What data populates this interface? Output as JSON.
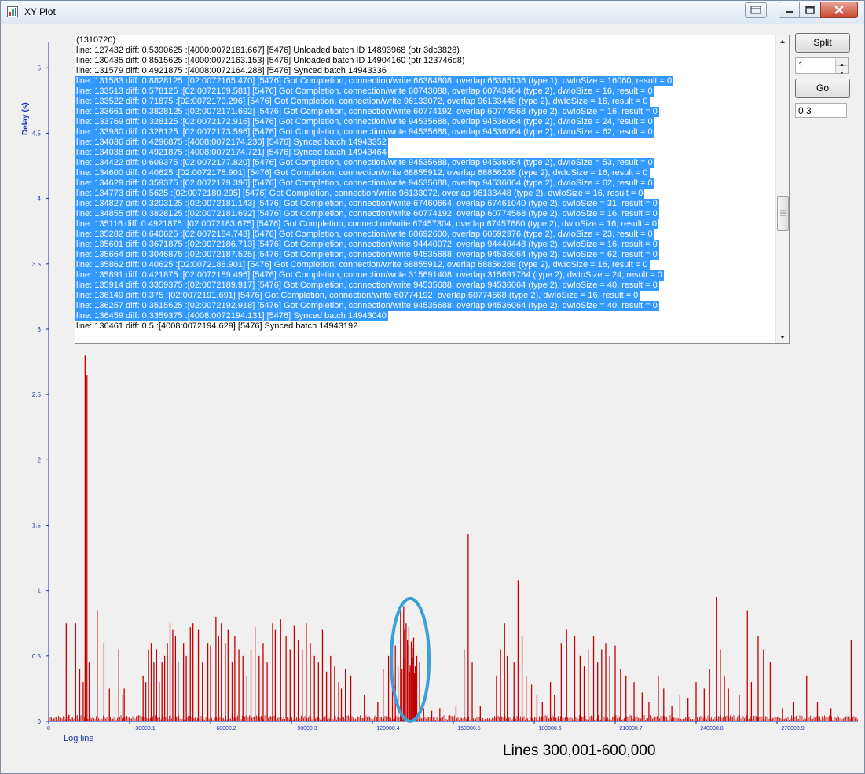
{
  "window": {
    "title": "XY Plot",
    "icon": "chart-app-icon"
  },
  "controls": {
    "split_label": "Split",
    "spin_value": "1",
    "go_label": "Go",
    "threshold_value": "0.3"
  },
  "log": {
    "lines": [
      {
        "text": "(1310720)",
        "selected": false
      },
      {
        "text": "line: 127432 diff: 0.5390625  :[4000:0072161.667] [5476] Unloaded batch ID 14893968 (ptr 3dc3828)",
        "selected": false
      },
      {
        "text": "line: 130435 diff: 0.8515625  :[4000:0072163.153] [5476] Unloaded batch ID 14904160 (ptr 123746d8)",
        "selected": false
      },
      {
        "text": "line: 131579 diff: 0.4921875  :[4008:0072164.288] [5476] Synced batch 14943336",
        "selected": false
      },
      {
        "text": "line: 131583 diff: 0.8828125  :[02:0072165.470] [5476] Got Completion, connection/write 66384808, overlap 66385136 (type 1), dwIoSize = 16060, result = 0",
        "selected": true
      },
      {
        "text": "line: 133513 diff: 0.578125  :[02:0072169.581] [5476] Got Completion, connection/write 60743088, overlap 60743464 (type 2), dwIoSize = 16, result = 0",
        "selected": true
      },
      {
        "text": "line: 133522 diff: 0.71875  :[02:0072170.296] [5476] Got Completion, connection/write 96133072, overlap 96133448 (type 2), dwIoSize = 16, result = 0",
        "selected": true
      },
      {
        "text": "line: 133661 diff: 0.3828125  :[02:0072171.692] [5476] Got Completion, connection/write 60774192, overlap 60774568 (type 2), dwIoSize = 16, result = 0",
        "selected": true
      },
      {
        "text": "line: 133769 diff: 0.328125  :[02:0072172.916] [5476] Got Completion, connection/write 94535688, overlap 94536064 (type 2), dwIoSize = 24, result = 0",
        "selected": true
      },
      {
        "text": "line: 133930 diff: 0.328125  :[02:0072173.596] [5476] Got Completion, connection/write 94535688, overlap 94536064 (type 2), dwIoSize = 62, result = 0",
        "selected": true
      },
      {
        "text": "line: 134036 diff: 0.4296875  :[4008:0072174.230] [5476] Synced batch 14943352",
        "selected": true
      },
      {
        "text": "line: 134038 diff: 0.4921875  :[4008:0072174.721] [5476] Synced batch 14943464",
        "selected": true
      },
      {
        "text": "line: 134422 diff: 0.609375  :[02:0072177.820] [5476] Got Completion, connection/write 94535688, overlap 94536064 (type 2), dwIoSize = 53, result = 0",
        "selected": true
      },
      {
        "text": "line: 134600 diff: 0.40625  :[02:0072178.901] [5476] Got Completion, connection/write 68855912, overlap 68856288 (type 2), dwIoSize = 16, result = 0",
        "selected": true
      },
      {
        "text": "line: 134629 diff: 0.359375  :[02:0072179.396] [5476] Got Completion, connection/write 94535688, overlap 94536064 (type 2), dwIoSize = 62, result = 0",
        "selected": true
      },
      {
        "text": "line: 134773 diff: 0.5625  :[02:0072180.295] [5476] Got Completion, connection/write 96133072, overlap 96133448 (type 2), dwIoSize = 16, result = 0",
        "selected": true
      },
      {
        "text": "line: 134827 diff: 0.3203125  :[02:0072181.143] [5476] Got Completion, connection/write 67460664, overlap 67461040 (type 2), dwIoSize = 31, result = 0",
        "selected": true
      },
      {
        "text": "line: 134855 diff: 0.3828125  :[02:0072181.692] [5476] Got Completion, connection/write 60774192, overlap 60774568 (type 2), dwIoSize = 16, result = 0",
        "selected": true
      },
      {
        "text": "line: 135116 diff: 0.4921875  :[02:0072183.675] [5476] Got Completion, connection/write 67457304, overlap 67457680 (type 2), dwIoSize = 16, result = 0",
        "selected": true
      },
      {
        "text": "line: 135282 diff: 0.640625  :[02:0072184.743] [5476] Got Completion, connection/write 60692600, overlap 60692976 (type 2), dwIoSize = 23, result = 0",
        "selected": true
      },
      {
        "text": "line: 135601 diff: 0.3671875  :[02:0072186.713] [5476] Got Completion, connection/write 94440072, overlap 94440448 (type 2), dwIoSize = 16, result = 0",
        "selected": true
      },
      {
        "text": "line: 135664 diff: 0.3046875  :[02:0072187.525] [5476] Got Completion, connection/write 94535688, overlap 94536064 (type 2), dwIoSize = 62, result = 0",
        "selected": true
      },
      {
        "text": "line: 135862 diff: 0.40625  :[02:0072188.901] [5476] Got Completion, connection/write 68855912, overlap 68856288 (type 2), dwIoSize = 16, result = 0",
        "selected": true
      },
      {
        "text": "line: 135891 diff: 0.421875  :[02:0072189.496] [5476] Got Completion, connection/write 315691408, overlap 315691784 (type 2), dwIoSize = 24, result = 0",
        "selected": true
      },
      {
        "text": "line: 135914 diff: 0.3359375  :[02:0072189.917] [5476] Got Completion, connection/write 94535688, overlap 94536064 (type 2), dwIoSize = 40, result = 0",
        "selected": true
      },
      {
        "text": "line: 136149 diff: 0.375  :[02:0072191.691] [5476] Got Completion, connection/write 60774192, overlap 60774568 (type 2), dwIoSize = 16, result = 0",
        "selected": true
      },
      {
        "text": "line: 136257 diff: 0.3515625  :[02:0072192.918] [5476] Got Completion, connection/write 94535688, overlap 94536064 (type 2), dwIoSize = 40, result = 0",
        "selected": true
      },
      {
        "text": "line: 136459 diff: 0.3359375  :[4008:0072194.131] [5476] Synced batch 14943040",
        "selected": true
      },
      {
        "text": "line: 136461 diff: 0.5  :[4008:0072194.629] [5476] Synced batch 14943192",
        "selected": false
      }
    ]
  },
  "annotation": {
    "caption": "Lines 300,001-600,000"
  },
  "chart_data": {
    "type": "bar",
    "xlabel": "Log line",
    "ylabel": "Delay (s)",
    "xlim": [
      0,
      300000
    ],
    "ylim": [
      0,
      5.2
    ],
    "x_tick_labels": [
      "0",
      "30000.1",
      "60000.2",
      "90000.3",
      "120000.4",
      "150000.5",
      "180000.6",
      "210000.7",
      "240000.8",
      "270000.9"
    ],
    "x_tick_values": [
      0,
      30000.1,
      60000.2,
      90000.3,
      120000.4,
      150000.5,
      180000.6,
      210000.7,
      240000.8,
      270000.9
    ],
    "y_tick_labels": [
      "0",
      "0.5",
      "1",
      "1.5",
      "2",
      "2.5",
      "3",
      "3.5",
      "4",
      "4.5",
      "5"
    ],
    "y_tick_values": [
      0,
      0.5,
      1,
      1.5,
      2,
      2.5,
      3,
      3.5,
      4,
      4.5,
      5
    ],
    "bar_color": "#c00000",
    "axis_color": "#1a33b4",
    "highlight_color": "#3aa0d8",
    "highlight_center": [
      134000,
      0.47
    ],
    "spikes": [
      {
        "x": 6500,
        "y": 0.75
      },
      {
        "x": 7500,
        "y": 0.05
      },
      {
        "x": 10000,
        "y": 0.75
      },
      {
        "x": 11500,
        "y": 0.4
      },
      {
        "x": 12800,
        "y": 0.3
      },
      {
        "x": 13500,
        "y": 2.8
      },
      {
        "x": 14200,
        "y": 2.65
      },
      {
        "x": 15000,
        "y": 0.45
      },
      {
        "x": 18000,
        "y": 0.85
      },
      {
        "x": 20500,
        "y": 0.6
      },
      {
        "x": 22500,
        "y": 0.25
      },
      {
        "x": 26000,
        "y": 0.55
      },
      {
        "x": 27500,
        "y": 0.2
      },
      {
        "x": 28000,
        "y": 0.25
      },
      {
        "x": 35000,
        "y": 0.35
      },
      {
        "x": 36000,
        "y": 0.3
      },
      {
        "x": 37000,
        "y": 0.55
      },
      {
        "x": 38000,
        "y": 0.6
      },
      {
        "x": 39000,
        "y": 0.45
      },
      {
        "x": 40000,
        "y": 0.55
      },
      {
        "x": 41000,
        "y": 0.3
      },
      {
        "x": 42000,
        "y": 0.45
      },
      {
        "x": 43000,
        "y": 0.5
      },
      {
        "x": 44000,
        "y": 0.6
      },
      {
        "x": 45000,
        "y": 0.75
      },
      {
        "x": 46000,
        "y": 0.7
      },
      {
        "x": 47000,
        "y": 0.65
      },
      {
        "x": 48000,
        "y": 0.45
      },
      {
        "x": 50000,
        "y": 0.6
      },
      {
        "x": 51000,
        "y": 0.5
      },
      {
        "x": 52500,
        "y": 0.72
      },
      {
        "x": 53500,
        "y": 0.75
      },
      {
        "x": 55500,
        "y": 0.7
      },
      {
        "x": 57000,
        "y": 0.45
      },
      {
        "x": 59000,
        "y": 0.6
      },
      {
        "x": 60000,
        "y": 0.58
      },
      {
        "x": 62000,
        "y": 0.8
      },
      {
        "x": 63000,
        "y": 0.65
      },
      {
        "x": 64000,
        "y": 0.75
      },
      {
        "x": 65500,
        "y": 0.6
      },
      {
        "x": 66500,
        "y": 0.7
      },
      {
        "x": 68000,
        "y": 0.45
      },
      {
        "x": 69000,
        "y": 0.65
      },
      {
        "x": 70500,
        "y": 0.55
      },
      {
        "x": 72000,
        "y": 0.5
      },
      {
        "x": 73500,
        "y": 0.35
      },
      {
        "x": 75000,
        "y": 0.55
      },
      {
        "x": 76500,
        "y": 0.72
      },
      {
        "x": 78000,
        "y": 0.5
      },
      {
        "x": 79500,
        "y": 0.6
      },
      {
        "x": 81000,
        "y": 0.45
      },
      {
        "x": 83000,
        "y": 0.75
      },
      {
        "x": 84000,
        "y": 0.7
      },
      {
        "x": 86000,
        "y": 0.78
      },
      {
        "x": 88000,
        "y": 0.65
      },
      {
        "x": 89500,
        "y": 0.55
      },
      {
        "x": 91000,
        "y": 0.73
      },
      {
        "x": 92500,
        "y": 0.62
      },
      {
        "x": 94000,
        "y": 0.55
      },
      {
        "x": 95500,
        "y": 0.75
      },
      {
        "x": 97000,
        "y": 0.6
      },
      {
        "x": 98500,
        "y": 0.5
      },
      {
        "x": 100000,
        "y": 0.45
      },
      {
        "x": 101500,
        "y": 0.7
      },
      {
        "x": 103000,
        "y": 0.38
      },
      {
        "x": 104500,
        "y": 0.5
      },
      {
        "x": 106000,
        "y": 0.42
      },
      {
        "x": 107500,
        "y": 0.3
      },
      {
        "x": 108500,
        "y": 0.25
      },
      {
        "x": 110000,
        "y": 0.4
      },
      {
        "x": 112000,
        "y": 0.35
      },
      {
        "x": 117000,
        "y": 0.2
      },
      {
        "x": 122000,
        "y": 0.15
      },
      {
        "x": 124000,
        "y": 0.4
      },
      {
        "x": 126000,
        "y": 0.5
      },
      {
        "x": 127432,
        "y": 0.54
      },
      {
        "x": 128500,
        "y": 0.58
      },
      {
        "x": 129500,
        "y": 0.42
      },
      {
        "x": 130435,
        "y": 0.85
      },
      {
        "x": 131000,
        "y": 0.4
      },
      {
        "x": 131579,
        "y": 0.49
      },
      {
        "x": 131583,
        "y": 0.88
      },
      {
        "x": 132000,
        "y": 0.7
      },
      {
        "x": 132500,
        "y": 0.75
      },
      {
        "x": 133000,
        "y": 0.62
      },
      {
        "x": 133513,
        "y": 0.58
      },
      {
        "x": 133522,
        "y": 0.72
      },
      {
        "x": 133661,
        "y": 0.38
      },
      {
        "x": 134036,
        "y": 0.43
      },
      {
        "x": 134422,
        "y": 0.61
      },
      {
        "x": 134773,
        "y": 0.56
      },
      {
        "x": 135116,
        "y": 0.49
      },
      {
        "x": 135282,
        "y": 0.64
      },
      {
        "x": 135601,
        "y": 0.37
      },
      {
        "x": 135891,
        "y": 0.42
      },
      {
        "x": 136149,
        "y": 0.38
      },
      {
        "x": 136461,
        "y": 0.5
      },
      {
        "x": 137500,
        "y": 0.45
      },
      {
        "x": 139000,
        "y": 0.1
      },
      {
        "x": 142000,
        "y": 0.08
      },
      {
        "x": 145000,
        "y": 0.1
      },
      {
        "x": 151000,
        "y": 0.12
      },
      {
        "x": 154000,
        "y": 0.55
      },
      {
        "x": 155500,
        "y": 1.43
      },
      {
        "x": 157000,
        "y": 0.45
      },
      {
        "x": 160000,
        "y": 0.12
      },
      {
        "x": 166000,
        "y": 0.35
      },
      {
        "x": 167500,
        "y": 0.55
      },
      {
        "x": 169000,
        "y": 0.75
      },
      {
        "x": 170000,
        "y": 0.5
      },
      {
        "x": 172500,
        "y": 0.45
      },
      {
        "x": 174000,
        "y": 1.08
      },
      {
        "x": 175500,
        "y": 0.65
      },
      {
        "x": 177000,
        "y": 0.35
      },
      {
        "x": 179000,
        "y": 0.28
      },
      {
        "x": 181000,
        "y": 0.2
      },
      {
        "x": 183000,
        "y": 0.15
      },
      {
        "x": 186000,
        "y": 0.3
      },
      {
        "x": 187500,
        "y": 0.2
      },
      {
        "x": 190000,
        "y": 0.6
      },
      {
        "x": 192000,
        "y": 0.7
      },
      {
        "x": 195000,
        "y": 0.65
      },
      {
        "x": 197000,
        "y": 0.5
      },
      {
        "x": 198500,
        "y": 0.42
      },
      {
        "x": 200000,
        "y": 0.55
      },
      {
        "x": 202000,
        "y": 0.65
      },
      {
        "x": 203500,
        "y": 0.45
      },
      {
        "x": 205000,
        "y": 0.55
      },
      {
        "x": 206500,
        "y": 0.6
      },
      {
        "x": 208000,
        "y": 0.5
      },
      {
        "x": 210000,
        "y": 0.58
      },
      {
        "x": 212000,
        "y": 0.4
      },
      {
        "x": 214000,
        "y": 0.35
      },
      {
        "x": 217000,
        "y": 0.3
      },
      {
        "x": 220000,
        "y": 0.22
      },
      {
        "x": 222500,
        "y": 0.15
      },
      {
        "x": 226000,
        "y": 0.35
      },
      {
        "x": 228000,
        "y": 0.25
      },
      {
        "x": 231000,
        "y": 0.12
      },
      {
        "x": 234000,
        "y": 0.2
      },
      {
        "x": 237000,
        "y": 0.18
      },
      {
        "x": 240000,
        "y": 0.3
      },
      {
        "x": 243000,
        "y": 0.25
      },
      {
        "x": 245000,
        "y": 0.4
      },
      {
        "x": 247500,
        "y": 0.95
      },
      {
        "x": 249000,
        "y": 0.55
      },
      {
        "x": 250500,
        "y": 0.35
      },
      {
        "x": 252000,
        "y": 0.25
      },
      {
        "x": 256000,
        "y": 0.2
      },
      {
        "x": 259000,
        "y": 0.85
      },
      {
        "x": 260500,
        "y": 0.3
      },
      {
        "x": 263000,
        "y": 0.65
      },
      {
        "x": 265000,
        "y": 0.55
      },
      {
        "x": 267500,
        "y": 0.45
      },
      {
        "x": 272000,
        "y": 0.1
      },
      {
        "x": 276000,
        "y": 0.15
      },
      {
        "x": 281000,
        "y": 0.35
      },
      {
        "x": 285000,
        "y": 0.15
      },
      {
        "x": 290000,
        "y": 0.1
      },
      {
        "x": 297500,
        "y": 0.62
      }
    ]
  }
}
